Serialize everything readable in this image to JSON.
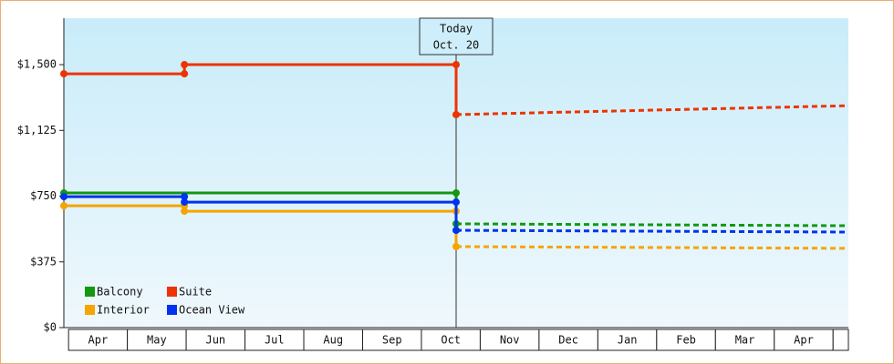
{
  "chart_data": {
    "type": "line",
    "xlim": [
      -0.08,
      13.26
    ],
    "ylim": [
      0,
      1765
    ],
    "yticks": [
      {
        "value": 0,
        "label": "$0"
      },
      {
        "value": 375,
        "label": "$375"
      },
      {
        "value": 750,
        "label": "$750"
      },
      {
        "value": 1125,
        "label": "$1,125"
      },
      {
        "value": 1500,
        "label": "$1,500"
      }
    ],
    "xticks": [
      {
        "value": 0.5,
        "label": "Apr"
      },
      {
        "value": 1.5,
        "label": "May"
      },
      {
        "value": 2.5,
        "label": "Jun"
      },
      {
        "value": 3.5,
        "label": "Jul"
      },
      {
        "value": 4.5,
        "label": "Aug"
      },
      {
        "value": 5.5,
        "label": "Sep"
      },
      {
        "value": 6.5,
        "label": "Oct"
      },
      {
        "value": 7.5,
        "label": "Nov"
      },
      {
        "value": 8.5,
        "label": "Dec"
      },
      {
        "value": 9.5,
        "label": "Jan"
      },
      {
        "value": 10.5,
        "label": "Feb"
      },
      {
        "value": 11.5,
        "label": "Mar"
      },
      {
        "value": 12.5,
        "label": "Apr"
      }
    ],
    "today": {
      "x": 6.59,
      "label": "Today",
      "date": "Oct. 20"
    },
    "series": [
      {
        "name": "Balcony",
        "color": "#119911",
        "x": [
          -0.08,
          6.59,
          6.59
        ],
        "values": [
          768,
          768,
          592
        ],
        "forecast_x": [
          6.59,
          13.26
        ],
        "forecast_values": [
          592,
          581
        ]
      },
      {
        "name": "Suite",
        "color": "#ee3300",
        "x": [
          -0.08,
          1.97,
          1.97,
          6.59,
          6.59
        ],
        "values": [
          1448,
          1448,
          1500,
          1500,
          1215
        ],
        "forecast_x": [
          6.59,
          13.26
        ],
        "forecast_values": [
          1215,
          1266
        ]
      },
      {
        "name": "Interior",
        "color": "#f5a500",
        "x": [
          -0.08,
          1.97,
          1.97,
          6.59,
          6.59
        ],
        "values": [
          695,
          695,
          664,
          664,
          462
        ],
        "forecast_x": [
          6.59,
          13.26
        ],
        "forecast_values": [
          462,
          452
        ]
      },
      {
        "name": "Ocean View",
        "color": "#0033ee",
        "x": [
          -0.08,
          1.97,
          1.97,
          6.59,
          6.59
        ],
        "values": [
          747,
          747,
          716,
          716,
          555
        ],
        "forecast_x": [
          6.59,
          13.26
        ],
        "forecast_values": [
          555,
          545
        ]
      }
    ]
  }
}
